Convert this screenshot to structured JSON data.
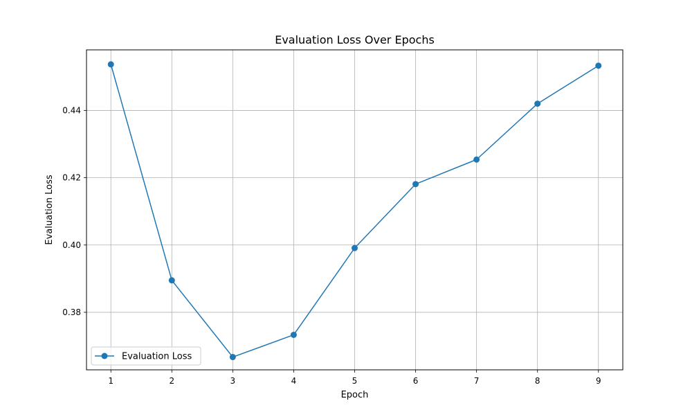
{
  "chart_data": {
    "type": "line",
    "title": "Evaluation Loss Over Epochs",
    "xlabel": "Epoch",
    "ylabel": "Evaluation Loss",
    "x": [
      1,
      2,
      3,
      4,
      5,
      6,
      7,
      8,
      9
    ],
    "series": [
      {
        "name": "Evaluation Loss",
        "values": [
          0.4537,
          0.3895,
          0.3667,
          0.3733,
          0.3991,
          0.4181,
          0.4254,
          0.442,
          0.4533
        ],
        "color": "#1f77b4",
        "marker": "circle"
      }
    ],
    "xticks": [
      "1",
      "2",
      "3",
      "4",
      "5",
      "6",
      "7",
      "8",
      "9"
    ],
    "yticks": [
      "0.38",
      "0.40",
      "0.42",
      "0.44"
    ],
    "ytick_values": [
      0.38,
      0.4,
      0.42,
      0.44
    ],
    "xlim": [
      0.6,
      9.4
    ],
    "ylim": [
      0.3629,
      0.458
    ],
    "grid": true,
    "legend": "lower-left"
  }
}
